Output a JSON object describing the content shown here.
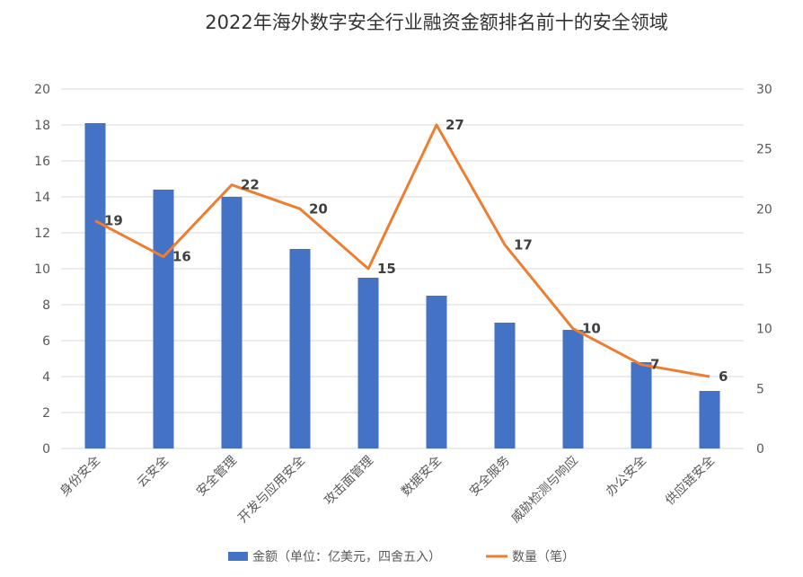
{
  "chart_data": {
    "type": "bar",
    "title": "2022年海外数字安全行业融资金额排名前十的安全领域",
    "categories": [
      "身份安全",
      "云安全",
      "安全管理",
      "开发与应用安全",
      "攻击面管理",
      "数据安全",
      "安全服务",
      "威胁检测与响应",
      "办公安全",
      "供应链安全"
    ],
    "series": [
      {
        "name": "金额（单位：亿美元，四舍五入）",
        "type": "bar",
        "axis": "left",
        "color": "#4472c4",
        "values": [
          18.1,
          14.4,
          14.0,
          11.1,
          9.5,
          8.5,
          7.0,
          6.6,
          4.8,
          3.2
        ]
      },
      {
        "name": "数量（笔）",
        "type": "line",
        "axis": "right",
        "color": "#ed7d31",
        "values": [
          19,
          16,
          22,
          20,
          15,
          27,
          17,
          10,
          7,
          6
        ],
        "data_labels": [
          "19",
          "16",
          "22",
          "20",
          "15",
          "27",
          "17",
          "10",
          "7",
          "6"
        ]
      }
    ],
    "y_left": {
      "min": 0,
      "max": 20,
      "ticks": [
        "0",
        "2",
        "4",
        "6",
        "8",
        "10",
        "12",
        "14",
        "16",
        "18",
        "20"
      ]
    },
    "y_right": {
      "min": 0,
      "max": 30,
      "ticks": [
        "0",
        "5",
        "10",
        "15",
        "20",
        "25",
        "30"
      ]
    },
    "grid": true,
    "legend_position": "bottom"
  }
}
